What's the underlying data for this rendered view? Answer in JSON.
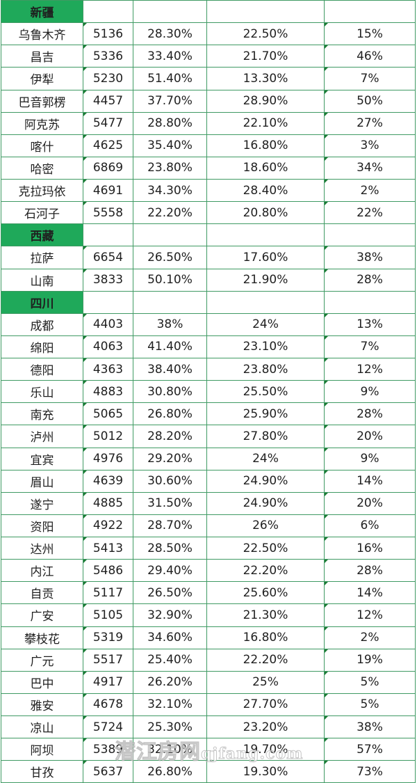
{
  "sheet": {
    "groups": [
      {
        "province": "新疆",
        "rows": [
          {
            "city": "乌鲁木齐",
            "v1": "5136",
            "v2": "28.30%",
            "v3": "22.50%",
            "v4": "15%"
          },
          {
            "city": "昌吉",
            "v1": "5336",
            "v2": "33.40%",
            "v3": "21.70%",
            "v4": "46%"
          },
          {
            "city": "伊犁",
            "v1": "5230",
            "v2": "51.40%",
            "v3": "13.30%",
            "v4": "7%"
          },
          {
            "city": "巴音郭楞",
            "v1": "4457",
            "v2": "37.70%",
            "v3": "28.90%",
            "v4": "50%"
          },
          {
            "city": "阿克苏",
            "v1": "5477",
            "v2": "28.80%",
            "v3": "22.10%",
            "v4": "27%"
          },
          {
            "city": "喀什",
            "v1": "4625",
            "v2": "35.40%",
            "v3": "16.80%",
            "v4": "3%"
          },
          {
            "city": "哈密",
            "v1": "6869",
            "v2": "23.80%",
            "v3": "18.60%",
            "v4": "34%"
          },
          {
            "city": "克拉玛依",
            "v1": "4691",
            "v2": "34.30%",
            "v3": "28.40%",
            "v4": "2%"
          },
          {
            "city": "石河子",
            "v1": "5558",
            "v2": "22.20%",
            "v3": "20.80%",
            "v4": "22%"
          }
        ]
      },
      {
        "province": "西藏",
        "rows": [
          {
            "city": "拉萨",
            "v1": "6654",
            "v2": "26.50%",
            "v3": "17.60%",
            "v4": "38%"
          },
          {
            "city": "山南",
            "v1": "3833",
            "v2": "50.10%",
            "v3": "21.90%",
            "v4": "28%"
          }
        ]
      },
      {
        "province": "四川",
        "rows": [
          {
            "city": "成都",
            "v1": "4403",
            "v2": "38%",
            "v3": "24%",
            "v4": "13%"
          },
          {
            "city": "绵阳",
            "v1": "4063",
            "v2": "41.40%",
            "v3": "23.10%",
            "v4": "7%"
          },
          {
            "city": "德阳",
            "v1": "4363",
            "v2": "38.40%",
            "v3": "23.80%",
            "v4": "12%"
          },
          {
            "city": "乐山",
            "v1": "4883",
            "v2": "30.80%",
            "v3": "25.50%",
            "v4": "9%"
          },
          {
            "city": "南充",
            "v1": "5065",
            "v2": "26.80%",
            "v3": "25.90%",
            "v4": "28%"
          },
          {
            "city": "泸州",
            "v1": "5012",
            "v2": "28.20%",
            "v3": "27.80%",
            "v4": "20%"
          },
          {
            "city": "宜宾",
            "v1": "4976",
            "v2": "29.20%",
            "v3": "24%",
            "v4": "9%"
          },
          {
            "city": "眉山",
            "v1": "4639",
            "v2": "30.60%",
            "v3": "24.90%",
            "v4": "14%"
          },
          {
            "city": "遂宁",
            "v1": "4885",
            "v2": "31.50%",
            "v3": "24.90%",
            "v4": "20%"
          },
          {
            "city": "资阳",
            "v1": "4922",
            "v2": "28.70%",
            "v3": "26%",
            "v4": "6%"
          },
          {
            "city": "达州",
            "v1": "5413",
            "v2": "28.50%",
            "v3": "22.50%",
            "v4": "16%"
          },
          {
            "city": "内江",
            "v1": "5486",
            "v2": "29.40%",
            "v3": "22.20%",
            "v4": "28%"
          },
          {
            "city": "自贡",
            "v1": "5117",
            "v2": "26.50%",
            "v3": "25.60%",
            "v4": "14%"
          },
          {
            "city": "广安",
            "v1": "5105",
            "v2": "32.90%",
            "v3": "21.30%",
            "v4": "12%"
          },
          {
            "city": "攀枝花",
            "v1": "5319",
            "v2": "34.60%",
            "v3": "16.80%",
            "v4": "2%"
          },
          {
            "city": "广元",
            "v1": "5517",
            "v2": "25.40%",
            "v3": "22.20%",
            "v4": "19%"
          },
          {
            "city": "巴中",
            "v1": "4917",
            "v2": "26.20%",
            "v3": "25%",
            "v4": "5%"
          },
          {
            "city": "雅安",
            "v1": "4678",
            "v2": "32.10%",
            "v3": "27.70%",
            "v4": "5%"
          },
          {
            "city": "凉山",
            "v1": "5724",
            "v2": "25.30%",
            "v3": "23.20%",
            "v4": "38%"
          },
          {
            "city": "阿坝",
            "v1": "5389",
            "v2": "32.10%",
            "v3": "19.70%",
            "v4": "57%"
          },
          {
            "city": "甘孜",
            "v1": "5637",
            "v2": "26.80%",
            "v3": "19.30%",
            "v4": "73%"
          }
        ]
      }
    ]
  },
  "watermark": {
    "cn": "潜江房网",
    "latin": "qjfang.com"
  },
  "colors": {
    "header_green": "#1fa95a",
    "grid_line": "#3f9a63",
    "text": "#1f1f1f"
  }
}
